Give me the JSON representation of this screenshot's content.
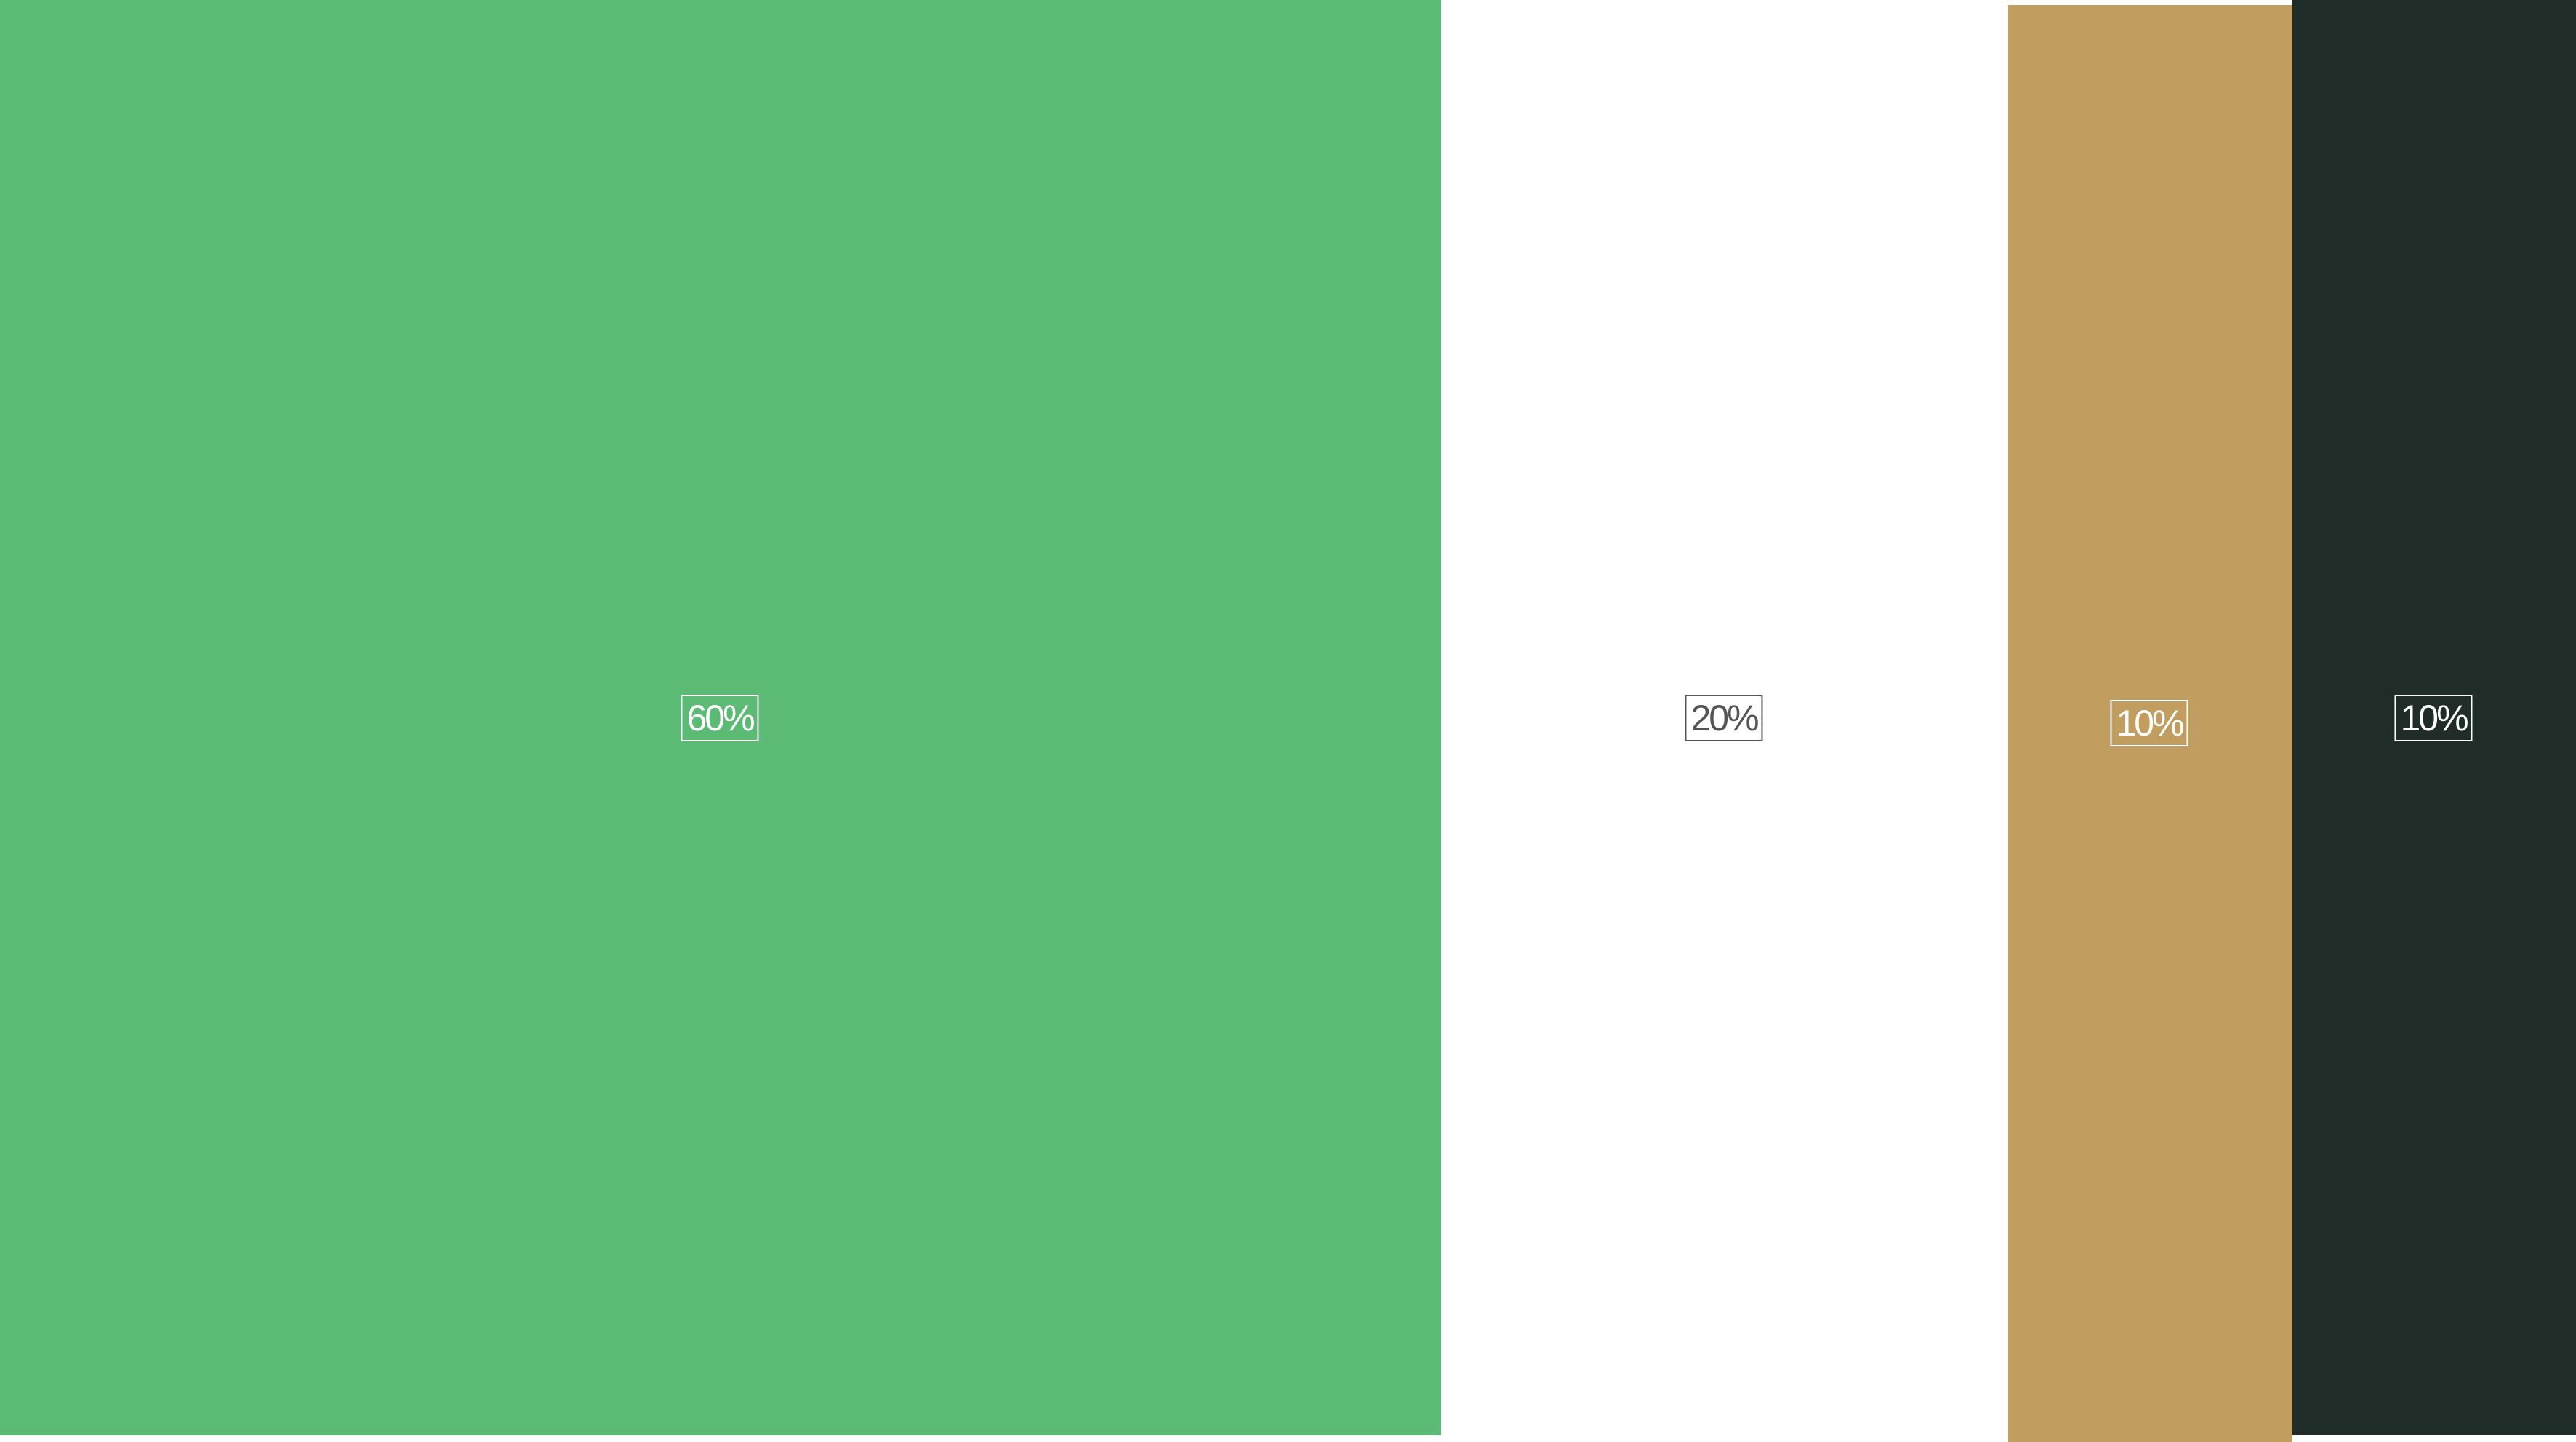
{
  "swatches": [
    {
      "label": "60%",
      "color": "#5bba73",
      "text_color": "#ffffff"
    },
    {
      "label": "20%",
      "color": "#ffffff",
      "text_color": "#555555"
    },
    {
      "label": "10%",
      "color": "#c19d5f",
      "text_color": "#ffffff"
    },
    {
      "label": "10%",
      "color": "#1f2c27",
      "text_color": "#ffffff"
    }
  ]
}
